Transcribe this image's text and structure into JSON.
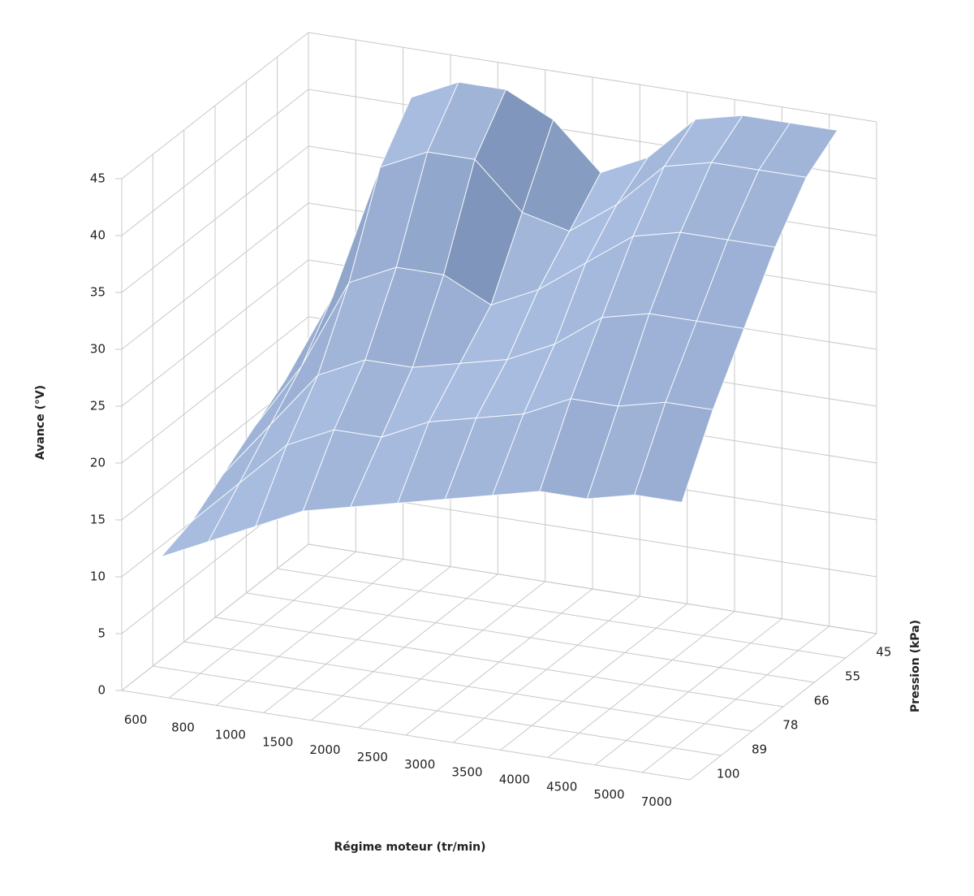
{
  "chart_data": {
    "type": "surface",
    "x_label": "Régime moteur (tr/min)",
    "depth_label": "Pression (kPa)",
    "z_label": "Avance (°V)",
    "categories": [
      "600",
      "800",
      "1000",
      "1500",
      "2000",
      "2500",
      "3000",
      "3500",
      "4000",
      "4500",
      "5000",
      "7000"
    ],
    "depth_categories": [
      "45",
      "55",
      "66",
      "78",
      "89",
      "100"
    ],
    "values": [
      [
        20,
        30,
        42,
        44,
        44,
        42,
        38,
        40,
        44,
        45,
        45,
        45
      ],
      [
        18,
        26,
        38,
        40,
        40,
        36,
        35,
        38,
        42,
        43,
        43,
        43
      ],
      [
        16,
        22,
        30,
        32,
        32,
        30,
        32,
        35,
        38,
        39,
        39,
        39
      ],
      [
        14,
        19,
        24,
        26,
        26,
        27,
        28,
        30,
        33,
        34,
        34,
        34
      ],
      [
        12,
        16,
        20,
        22,
        22,
        24,
        25,
        26,
        28,
        28,
        29,
        29
      ],
      [
        11,
        13,
        15,
        17,
        18,
        19,
        20,
        21,
        22,
        22,
        23,
        23
      ]
    ],
    "color": "#4f81bd",
    "zlim": [
      0,
      45
    ],
    "zticks": [
      0,
      5,
      10,
      15,
      20,
      25,
      30,
      35,
      40,
      45
    ],
    "grid": true
  }
}
